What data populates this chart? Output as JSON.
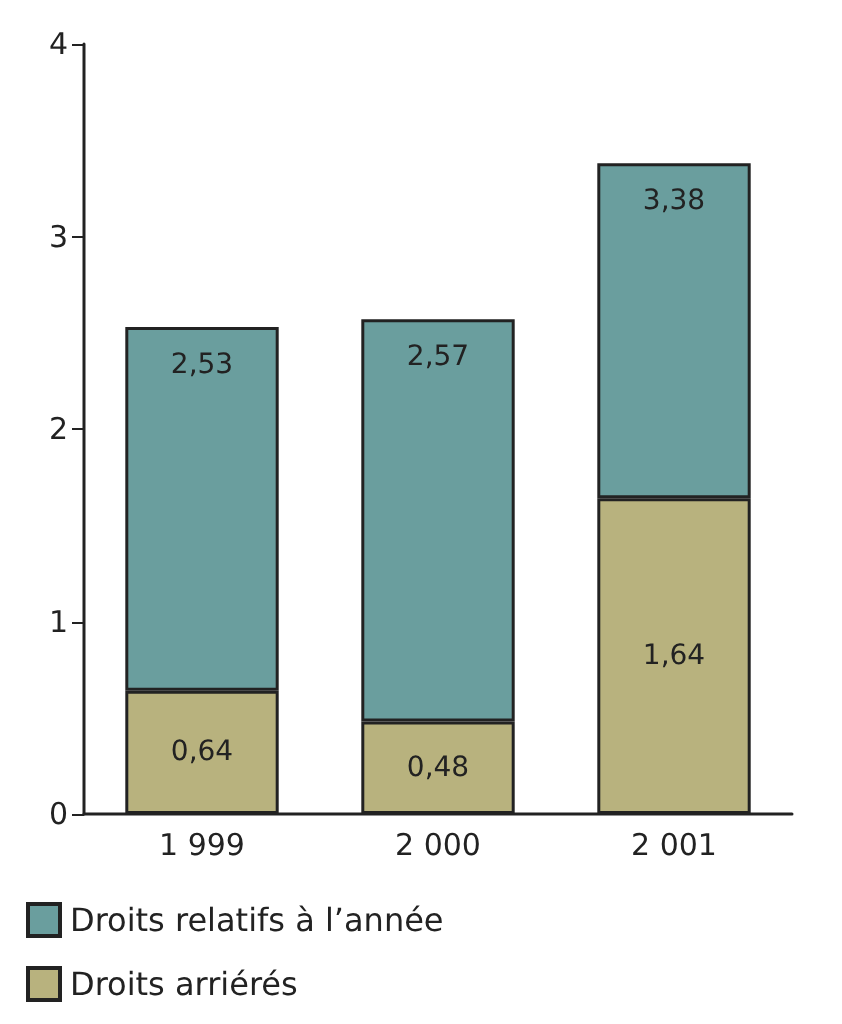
{
  "chart_data": {
    "type": "bar",
    "stacked": true,
    "categories": [
      "1 999",
      "2 000",
      "2 001"
    ],
    "series": [
      {
        "name": "Droits arriérés",
        "color": "#b8b27e",
        "values": [
          0.64,
          0.48,
          1.64
        ],
        "value_labels": [
          "0,64",
          "0,48",
          "1,64"
        ]
      },
      {
        "name": "Droits relatifs à l’année",
        "color": "#6a9e9e",
        "values": [
          1.89,
          2.09,
          1.74
        ]
      }
    ],
    "totals": [
      "2,53",
      "2,57",
      "3,38"
    ],
    "ylim": [
      0,
      4
    ],
    "yticks": [
      0,
      1,
      2,
      3,
      4
    ],
    "grid": false,
    "legend": "bottom left"
  }
}
